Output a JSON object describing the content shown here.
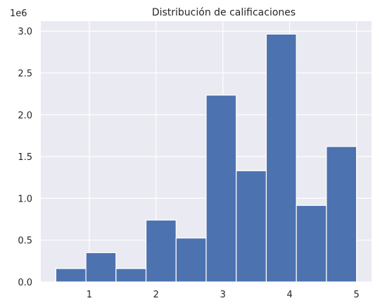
{
  "chart_data": {
    "type": "bar",
    "title": "Distribución de calificaciones",
    "xlabel": "",
    "ylabel": "",
    "y_offset_label": "1e6",
    "bin_edges": [
      0.5,
      0.95,
      1.4,
      1.85,
      2.3,
      2.75,
      3.2,
      3.65,
      4.1,
      4.55,
      5.0
    ],
    "values": [
      160000,
      350000,
      160000,
      740000,
      525000,
      2235000,
      1330000,
      2965000,
      915000,
      1620000
    ],
    "xlim": [
      0.275,
      5.225
    ],
    "ylim": [
      0,
      3120000
    ],
    "x_ticks": [
      1,
      2,
      3,
      4,
      5
    ],
    "x_tick_labels": [
      "1",
      "2",
      "3",
      "4",
      "5"
    ],
    "y_ticks": [
      0,
      500000,
      1000000,
      1500000,
      2000000,
      2500000,
      3000000
    ],
    "y_tick_labels": [
      "0.0",
      "0.5",
      "1.0",
      "1.5",
      "2.0",
      "2.5",
      "3.0"
    ],
    "grid": true,
    "colors": {
      "bar": "#4c72b0",
      "bar_edge": "#ffffff",
      "plot_background": "#eaeaf2",
      "grid": "#ffffff",
      "text": "#262626"
    }
  }
}
